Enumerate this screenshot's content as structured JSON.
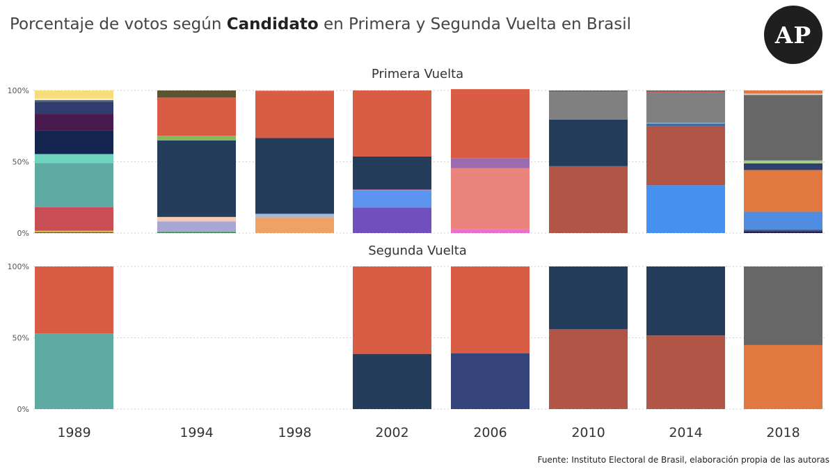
{
  "header": {
    "title_part1": "Porcentaje de votos según ",
    "title_bold": "Candidato",
    "title_part2": " en Primera y Segunda Vuelta en Brasil",
    "logo_text": "AP"
  },
  "footer": {
    "source": "Fuente: Instituto Electoral de Brasil, elaboración propia de las autoras"
  },
  "chart_data": {
    "type": "bar",
    "stacked": true,
    "normalized": true,
    "categories": [
      "1989",
      "1994",
      "1998",
      "2002",
      "2006",
      "2010",
      "2014",
      "2018"
    ],
    "yticks": [
      "0%",
      "50%",
      "100%"
    ],
    "ylim": [
      0,
      100
    ],
    "grid": true,
    "panels": [
      {
        "title": "Primera Vuelta",
        "stacks": [
          [
            {
              "value": 0.5,
              "color": "#5a4e2a"
            },
            {
              "value": 1.2,
              "color": "#d9b44a"
            },
            {
              "value": 16.4,
              "color": "#c94d55"
            },
            {
              "value": 31.0,
              "color": "#5eaba3"
            },
            {
              "value": 6.3,
              "color": "#6fd3be"
            },
            {
              "value": 16.5,
              "color": "#14264f"
            },
            {
              "value": 11.5,
              "color": "#4a1a4f"
            },
            {
              "value": 8.6,
              "color": "#2f3e6e"
            },
            {
              "value": 1.2,
              "color": "#556070"
            },
            {
              "value": 1.3,
              "color": "#f5e6b8"
            },
            {
              "value": 5.5,
              "color": "#f7dc7a"
            }
          ],
          [
            {
              "value": 0.8,
              "color": "#3c8a4a"
            },
            {
              "value": 7.4,
              "color": "#a8a7d3"
            },
            {
              "value": 3.1,
              "color": "#f3cbb5"
            },
            {
              "value": 53.7,
              "color": "#243d5b"
            },
            {
              "value": 3.2,
              "color": "#86b95f"
            },
            {
              "value": 26.8,
              "color": "#d95c44"
            },
            {
              "value": 5.0,
              "color": "#5a5430"
            }
          ],
          [
            {
              "value": 11.0,
              "color": "#f0a166"
            },
            {
              "value": 2.5,
              "color": "#a3bbd8"
            },
            {
              "value": 53.1,
              "color": "#243d5b"
            },
            {
              "value": 32.9,
              "color": "#d95c44"
            },
            {
              "value": 0.5,
              "color": "#e88a80"
            }
          ],
          [
            {
              "value": 17.9,
              "color": "#7150bd"
            },
            {
              "value": 12.0,
              "color": "#5b95f0"
            },
            {
              "value": 0.6,
              "color": "#e06aa0"
            },
            {
              "value": 23.2,
              "color": "#243d5b"
            },
            {
              "value": 46.3,
              "color": "#d95c44"
            }
          ],
          [
            {
              "value": 2.6,
              "color": "#e870c6"
            },
            {
              "value": 42.9,
              "color": "#ea857e"
            },
            {
              "value": 6.8,
              "color": "#9b6bb0"
            },
            {
              "value": 48.6,
              "color": "#d95c44"
            }
          ],
          [
            {
              "value": 46.9,
              "color": "#b15646"
            },
            {
              "value": 32.7,
              "color": "#243d5b"
            },
            {
              "value": 19.4,
              "color": "#808080"
            },
            {
              "value": 0.6,
              "color": "#3b8a55"
            },
            {
              "value": 0.4,
              "color": "#555555"
            }
          ],
          [
            {
              "value": 33.5,
              "color": "#4690f0"
            },
            {
              "value": 41.6,
              "color": "#b15646"
            },
            {
              "value": 1.5,
              "color": "#3e6ea0"
            },
            {
              "value": 0.8,
              "color": "#7aa2c8"
            },
            {
              "value": 21.3,
              "color": "#808080"
            },
            {
              "value": 0.8,
              "color": "#cc4444"
            },
            {
              "value": 0.5,
              "color": "#666666"
            }
          ],
          [
            {
              "value": 1.2,
              "color": "#2a2050"
            },
            {
              "value": 1.2,
              "color": "#3f5a8a"
            },
            {
              "value": 12.5,
              "color": "#4f8de0"
            },
            {
              "value": 29.3,
              "color": "#e07840"
            },
            {
              "value": 4.7,
              "color": "#2e3e6e"
            },
            {
              "value": 2.0,
              "color": "#a5d08a"
            },
            {
              "value": 46.0,
              "color": "#676767"
            },
            {
              "value": 0.9,
              "color": "#e0d0c0"
            },
            {
              "value": 2.2,
              "color": "#e07840"
            }
          ]
        ]
      },
      {
        "title": "Segunda Vuelta",
        "stacks": [
          [
            {
              "value": 53.0,
              "color": "#5eaba3"
            },
            {
              "value": 47.0,
              "color": "#d95c44"
            }
          ],
          [],
          [],
          [
            {
              "value": 38.7,
              "color": "#243d5b"
            },
            {
              "value": 61.3,
              "color": "#d95c44"
            }
          ],
          [
            {
              "value": 39.2,
              "color": "#35447a"
            },
            {
              "value": 60.8,
              "color": "#d95c44"
            }
          ],
          [
            {
              "value": 56.1,
              "color": "#b15646"
            },
            {
              "value": 43.9,
              "color": "#243d5b"
            }
          ],
          [
            {
              "value": 51.6,
              "color": "#b15646"
            },
            {
              "value": 48.4,
              "color": "#243d5b"
            }
          ],
          [
            {
              "value": 44.9,
              "color": "#e07840"
            },
            {
              "value": 55.1,
              "color": "#676767"
            }
          ]
        ]
      }
    ]
  }
}
